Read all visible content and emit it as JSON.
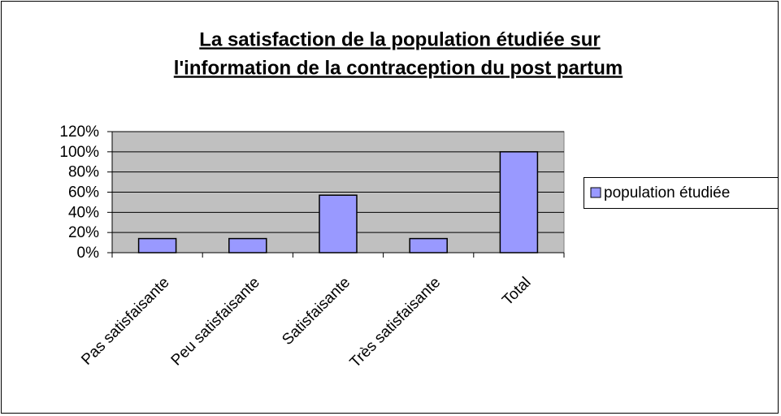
{
  "chart_data": {
    "type": "bar",
    "title": [
      "La satisfaction de la population étudiée sur",
      "l'information de la contraception du post partum"
    ],
    "categories": [
      "Pas satisfaisante",
      "Peu satisfaisante",
      "Satisfaisante",
      "Très satisfaisante",
      "Total"
    ],
    "series": [
      {
        "name": "population étudiée",
        "color": "#9999ff",
        "values": [
          14,
          14,
          57,
          14,
          100
        ]
      }
    ],
    "ylim": [
      0,
      120
    ],
    "yticks": [
      {
        "value": 0,
        "label": "0%"
      },
      {
        "value": 20,
        "label": "20%"
      },
      {
        "value": 40,
        "label": "40%"
      },
      {
        "value": 60,
        "label": "60%"
      },
      {
        "value": 80,
        "label": "80%"
      },
      {
        "value": 100,
        "label": "100%"
      },
      {
        "value": 120,
        "label": "120%"
      }
    ],
    "grid": true,
    "legend": "right"
  }
}
